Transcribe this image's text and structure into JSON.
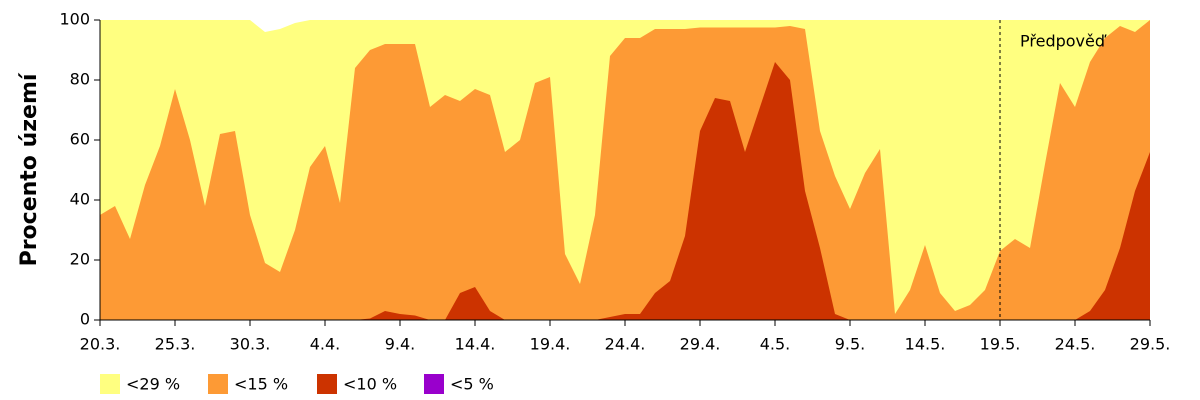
{
  "chart_data": {
    "type": "area",
    "ylabel": "Procento území",
    "categories": [
      "20.3.",
      null,
      null,
      null,
      null,
      "25.3.",
      null,
      null,
      null,
      null,
      "30.3.",
      null,
      null,
      null,
      null,
      "4.4.",
      null,
      null,
      null,
      null,
      "9.4.",
      null,
      null,
      null,
      null,
      "14.4.",
      null,
      null,
      null,
      null,
      "19.4.",
      null,
      null,
      null,
      null,
      "24.4.",
      null,
      null,
      null,
      null,
      "29.4.",
      null,
      null,
      null,
      null,
      "4.5.",
      null,
      null,
      null,
      null,
      "9.5.",
      null,
      null,
      null,
      null,
      "14.5.",
      null,
      null,
      null,
      null,
      "19.5.",
      null,
      null,
      null,
      null,
      "24.5.",
      null,
      null,
      null,
      null,
      "29.5."
    ],
    "series": [
      {
        "name": "<29 %",
        "color": "#ffff80",
        "values": [
          100,
          100,
          100,
          100,
          100,
          100,
          100,
          100,
          100,
          100,
          100,
          96,
          97,
          99,
          100,
          100,
          100,
          100,
          100,
          100,
          100,
          100,
          100,
          100,
          100,
          100,
          100,
          100,
          100,
          100,
          100,
          100,
          100,
          100,
          100,
          100,
          100,
          100,
          100,
          100,
          100,
          100,
          100,
          100,
          100,
          100,
          100,
          100,
          100,
          100,
          100,
          100,
          100,
          100,
          100,
          100,
          100,
          100,
          100,
          100,
          100,
          100,
          100,
          100,
          100,
          100,
          100,
          100,
          100,
          100,
          100
        ]
      },
      {
        "name": "<15 %",
        "color": "#fd9a35",
        "values": [
          35,
          38,
          27,
          45,
          58,
          77,
          60,
          38,
          62,
          63,
          35,
          19,
          16,
          30,
          51,
          58,
          39,
          84,
          90,
          92,
          92,
          92,
          71,
          75,
          73,
          77,
          75,
          56,
          60,
          79,
          81,
          22,
          12,
          35,
          88,
          94,
          94,
          97,
          97,
          97,
          97.5,
          97.5,
          97.5,
          97.5,
          97.5,
          97.5,
          98,
          97,
          63,
          48,
          37,
          49,
          57,
          2,
          10,
          25,
          9,
          3,
          5,
          10,
          23,
          27,
          24,
          52,
          79,
          71,
          86,
          94,
          98,
          96,
          100
        ]
      },
      {
        "name": "<10 %",
        "color": "#cc3300",
        "values": [
          0,
          0,
          0,
          0,
          0,
          0,
          0,
          0,
          0,
          0,
          0,
          0,
          0,
          0,
          0,
          0,
          0,
          0,
          0.5,
          3,
          2,
          1.5,
          0,
          0,
          9,
          11,
          3,
          0,
          0,
          0,
          0,
          0,
          0,
          0,
          1,
          2,
          2,
          9,
          13,
          28,
          63,
          74,
          73,
          56,
          71,
          86,
          80,
          43,
          24,
          2,
          0,
          0,
          0,
          0,
          0,
          0,
          0,
          0,
          0,
          0,
          0,
          0,
          0,
          0,
          0,
          0,
          3,
          10,
          24,
          43,
          56
        ]
      },
      {
        "name": "<5 %",
        "color": "#9900cc",
        "values": [
          0,
          0,
          0,
          0,
          0,
          0,
          0,
          0,
          0,
          0,
          0,
          0,
          0,
          0,
          0,
          0,
          0,
          0,
          0,
          0,
          0,
          0,
          0,
          0,
          0,
          0,
          0,
          0,
          0,
          0,
          0,
          0,
          0,
          0,
          0,
          0,
          0,
          0,
          0,
          0,
          0,
          0,
          0,
          0,
          0,
          0,
          0,
          0,
          0,
          0,
          0,
          0,
          0,
          0,
          0,
          0,
          0,
          0,
          0,
          0,
          0,
          0,
          0,
          0,
          0,
          0,
          0,
          0,
          0,
          0,
          0
        ]
      }
    ],
    "annotation": {
      "text": "Předpověď",
      "x": "19.5."
    },
    "ylim": [
      0,
      100
    ],
    "yticks": [
      0,
      20,
      40,
      60,
      80,
      100
    ]
  }
}
